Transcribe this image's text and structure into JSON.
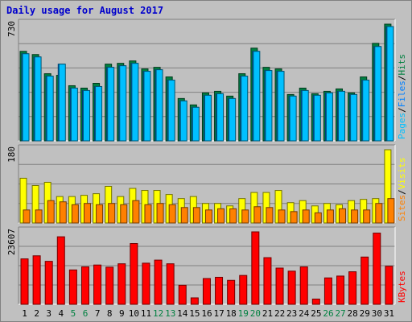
{
  "title": "Daily usage for August 2017",
  "chart_data": [
    {
      "type": "bar",
      "panel": "pages-files-hits",
      "x": [
        1,
        2,
        3,
        4,
        5,
        6,
        7,
        8,
        9,
        10,
        11,
        12,
        13,
        14,
        15,
        16,
        17,
        18,
        19,
        20,
        21,
        22,
        23,
        24,
        25,
        26,
        27,
        28,
        29,
        30,
        31
      ],
      "ymax_label": "730",
      "ylim": [
        0,
        730
      ],
      "legend": [
        {
          "name": "Pages",
          "color": "#00c0ff"
        },
        {
          "name": "Files",
          "color": "#0080ff"
        },
        {
          "name": "Hits",
          "color": "#008040"
        }
      ],
      "series": [
        {
          "name": "Hits",
          "color": "#008040",
          "values": [
            560,
            540,
            420,
            410,
            345,
            330,
            360,
            480,
            485,
            500,
            450,
            460,
            400,
            265,
            225,
            300,
            310,
            280,
            420,
            580,
            460,
            450,
            290,
            330,
            295,
            310,
            325,
            300,
            400,
            610,
            730
          ]
        },
        {
          "name": "Files",
          "color": "#0080ff",
          "values": [
            545,
            525,
            405,
            480,
            330,
            315,
            340,
            460,
            470,
            485,
            435,
            445,
            380,
            250,
            210,
            285,
            295,
            265,
            405,
            560,
            440,
            435,
            280,
            315,
            285,
            300,
            310,
            290,
            380,
            590,
            715
          ]
        },
        {
          "name": "Pages",
          "color": "#00c0ff",
          "values": [
            545,
            525,
            405,
            480,
            330,
            315,
            340,
            460,
            470,
            485,
            435,
            445,
            380,
            250,
            210,
            285,
            295,
            265,
            405,
            560,
            440,
            435,
            280,
            315,
            285,
            300,
            310,
            290,
            380,
            590,
            715
          ]
        }
      ]
    },
    {
      "type": "bar",
      "panel": "sites-visits",
      "x": [
        1,
        2,
        3,
        4,
        5,
        6,
        7,
        8,
        9,
        10,
        11,
        12,
        13,
        14,
        15,
        16,
        17,
        18,
        19,
        20,
        21,
        22,
        23,
        24,
        25,
        26,
        27,
        28,
        29,
        30,
        31
      ],
      "ymax_label": "180",
      "ylim": [
        0,
        180
      ],
      "legend": [
        {
          "name": "Sites",
          "color": "#ff8000"
        },
        {
          "name": "Visits",
          "color": "#ffff00"
        }
      ],
      "series": [
        {
          "name": "Visits",
          "color": "#ffff00",
          "values": [
            110,
            92,
            100,
            65,
            65,
            68,
            72,
            90,
            65,
            85,
            80,
            80,
            70,
            60,
            65,
            48,
            48,
            42,
            60,
            75,
            75,
            80,
            50,
            55,
            42,
            48,
            45,
            55,
            58,
            60,
            180
          ]
        },
        {
          "name": "Sites",
          "color": "#ff8000",
          "values": [
            32,
            32,
            55,
            52,
            45,
            48,
            45,
            48,
            45,
            55,
            45,
            48,
            45,
            38,
            38,
            32,
            35,
            35,
            32,
            40,
            38,
            32,
            28,
            32,
            25,
            32,
            35,
            32,
            32,
            48,
            60
          ]
        }
      ]
    },
    {
      "type": "bar",
      "panel": "kbytes",
      "x": [
        1,
        2,
        3,
        4,
        5,
        6,
        7,
        8,
        9,
        10,
        11,
        12,
        13,
        14,
        15,
        16,
        17,
        18,
        19,
        20,
        21,
        22,
        23,
        24,
        25,
        26,
        27,
        28,
        29,
        30,
        31
      ],
      "ymax_label": "23607",
      "ylim": [
        0,
        23607
      ],
      "legend": [
        {
          "name": "KBytes",
          "color": "#ff0000"
        }
      ],
      "series": [
        {
          "name": "KBytes",
          "color": "#ff0000",
          "values": [
            14800,
            15800,
            14000,
            22000,
            11200,
            12200,
            12800,
            12100,
            13200,
            19800,
            13400,
            14400,
            13200,
            6200,
            2100,
            8400,
            8800,
            7800,
            9400,
            23607,
            15200,
            11800,
            10800,
            12200,
            1700,
            8600,
            9200,
            10600,
            15400,
            23200,
            12400
          ]
        }
      ]
    }
  ],
  "x_labels": [
    {
      "text": "1",
      "color": "#000000"
    },
    {
      "text": "2",
      "color": "#000000"
    },
    {
      "text": "3",
      "color": "#000000"
    },
    {
      "text": "4",
      "color": "#000000"
    },
    {
      "text": "5",
      "color": "#008040"
    },
    {
      "text": "6",
      "color": "#008040"
    },
    {
      "text": "7",
      "color": "#000000"
    },
    {
      "text": "8",
      "color": "#000000"
    },
    {
      "text": "9",
      "color": "#000000"
    },
    {
      "text": "10",
      "color": "#000000"
    },
    {
      "text": "11",
      "color": "#000000"
    },
    {
      "text": "12",
      "color": "#008040"
    },
    {
      "text": "13",
      "color": "#008040"
    },
    {
      "text": "14",
      "color": "#000000"
    },
    {
      "text": "15",
      "color": "#000000"
    },
    {
      "text": "16",
      "color": "#000000"
    },
    {
      "text": "17",
      "color": "#000000"
    },
    {
      "text": "18",
      "color": "#000000"
    },
    {
      "text": "19",
      "color": "#008040"
    },
    {
      "text": "20",
      "color": "#008040"
    },
    {
      "text": "21",
      "color": "#000000"
    },
    {
      "text": "22",
      "color": "#000000"
    },
    {
      "text": "23",
      "color": "#000000"
    },
    {
      "text": "24",
      "color": "#000000"
    },
    {
      "text": "25",
      "color": "#000000"
    },
    {
      "text": "26",
      "color": "#008040"
    },
    {
      "text": "27",
      "color": "#008040"
    },
    {
      "text": "28",
      "color": "#000000"
    },
    {
      "text": "29",
      "color": "#000000"
    },
    {
      "text": "30",
      "color": "#000000"
    },
    {
      "text": "31",
      "color": "#000000"
    }
  ],
  "legend_separator": "/"
}
